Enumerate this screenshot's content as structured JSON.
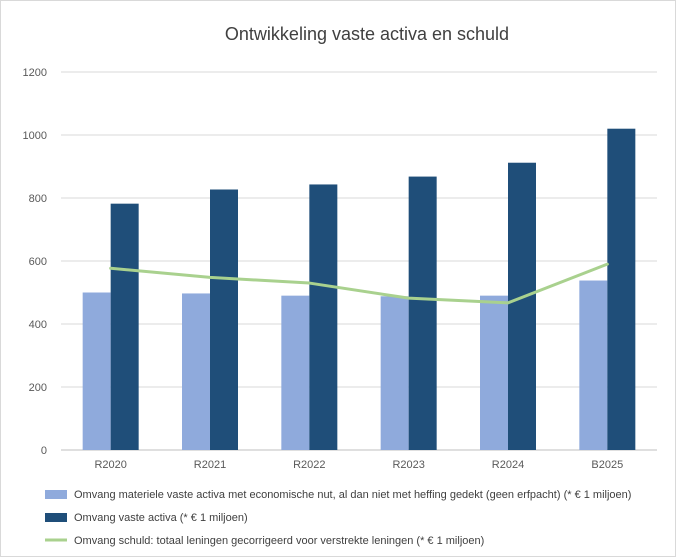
{
  "chart_data": {
    "type": "bar",
    "title": "Ontwikkeling vaste activa en schuld",
    "categories": [
      "R2020",
      "R2021",
      "R2022",
      "R2023",
      "R2024",
      "B2025"
    ],
    "ylim": [
      0,
      1200
    ],
    "yticks": [
      "0",
      "200",
      "400",
      "600",
      "800",
      "1000",
      "1200"
    ],
    "ytick_values": [
      0,
      200,
      400,
      600,
      800,
      1000,
      1200
    ],
    "grid": true,
    "legend_position": "bottom",
    "series": [
      {
        "name": "Omvang materiele vaste activa met economische nut, al dan niet met heffing gedekt (geen erfpacht) (* € 1 miljoen)",
        "type": "bar",
        "color": "#8faadc",
        "values": [
          500,
          497,
          490,
          488,
          490,
          538
        ]
      },
      {
        "name": "Omvang vaste activa (* € 1 miljoen)",
        "type": "bar",
        "color": "#1f4e79",
        "values": [
          782,
          827,
          843,
          868,
          912,
          1020
        ]
      },
      {
        "name": "Omvang schuld: totaal leningen gecorrigeerd voor verstrekte leningen (* € 1 miljoen)",
        "type": "line",
        "color": "#a9d18e",
        "values": [
          577,
          548,
          530,
          482,
          467,
          590
        ]
      }
    ]
  }
}
